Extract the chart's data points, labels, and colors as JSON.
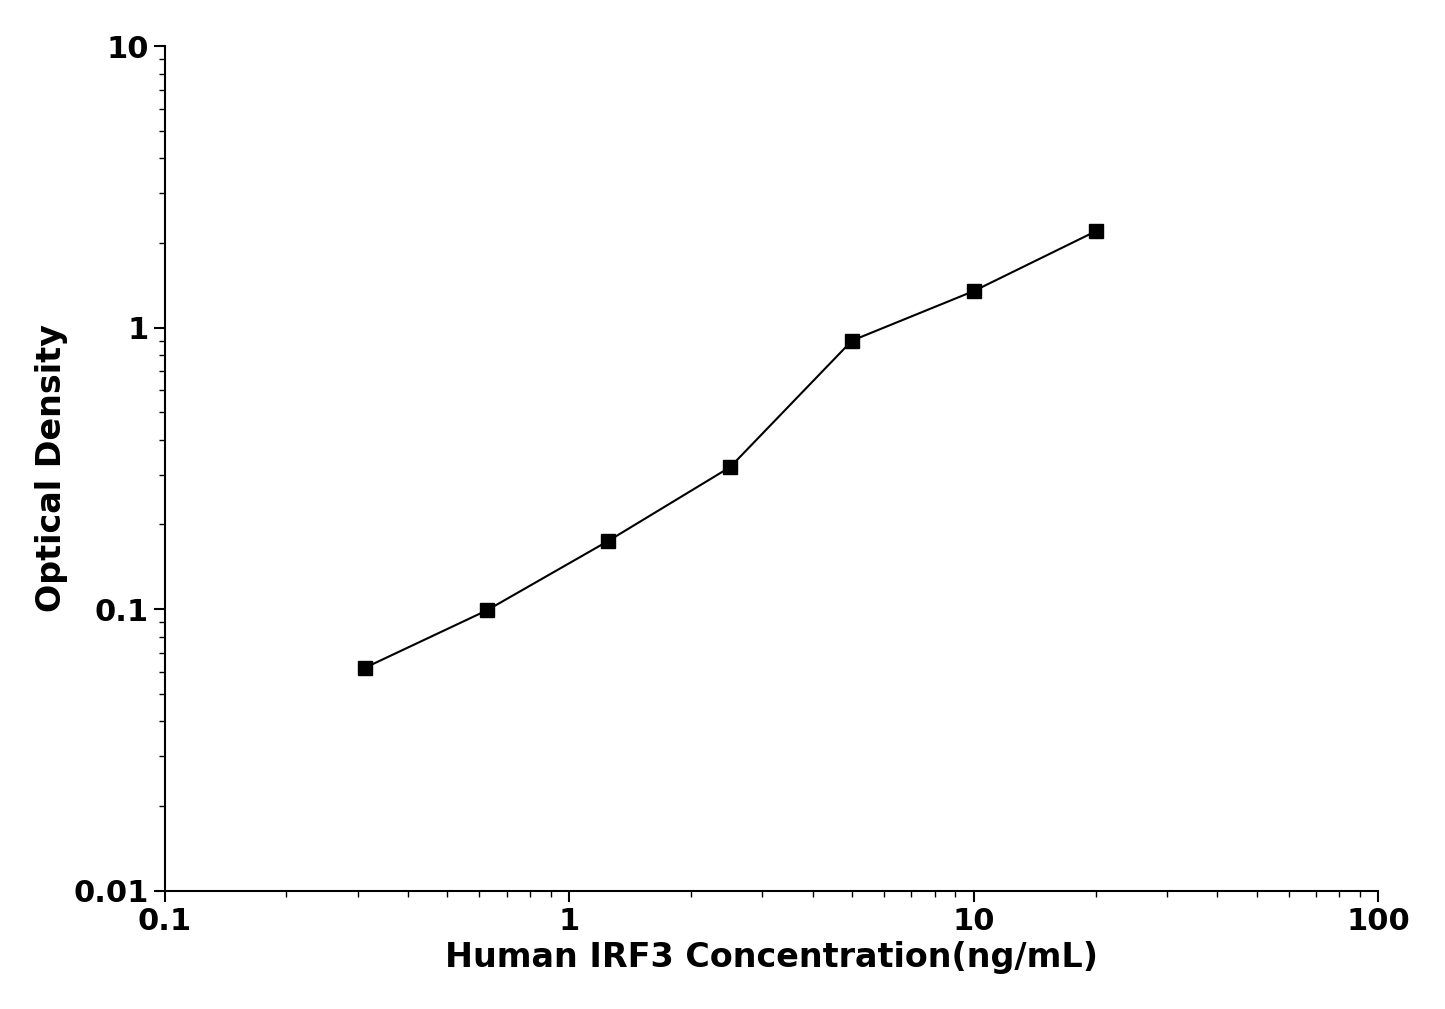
{
  "x": [
    0.313,
    0.625,
    1.25,
    2.5,
    5.0,
    10.0,
    20.0
  ],
  "y": [
    0.062,
    0.099,
    0.175,
    0.32,
    0.9,
    1.35,
    2.2
  ],
  "xlabel": "Human IRF3 Concentration(ng/mL)",
  "ylabel": "Optical Density",
  "xlim": [
    0.1,
    100
  ],
  "ylim": [
    0.01,
    10
  ],
  "line_color": "#000000",
  "marker": "s",
  "marker_color": "#000000",
  "marker_size": 10,
  "line_width": 1.5,
  "xlabel_fontsize": 24,
  "ylabel_fontsize": 24,
  "tick_fontsize": 22,
  "font_weight": "bold",
  "background_color": "#ffffff",
  "ytick_labels": [
    "0.01",
    "0.1",
    "1",
    "10"
  ],
  "xtick_labels": [
    "0.1",
    "1",
    "10",
    "100"
  ],
  "ytick_values": [
    0.01,
    0.1,
    1,
    10
  ],
  "xtick_values": [
    0.1,
    1,
    10,
    100
  ]
}
